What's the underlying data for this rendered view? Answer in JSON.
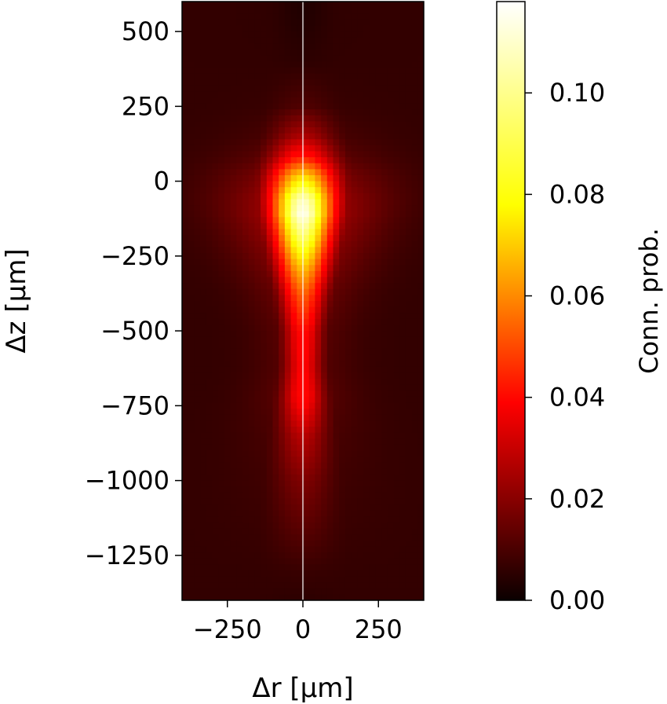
{
  "chart_data": {
    "type": "heatmap",
    "title": "",
    "xlabel": "Δr [μm]",
    "ylabel": "Δz [μm]",
    "xlim": [
      -400,
      400
    ],
    "ylim": [
      -1400,
      600
    ],
    "x_ticks": [
      -250,
      0,
      250
    ],
    "x_tick_labels": [
      "−250",
      "0",
      "250"
    ],
    "y_ticks": [
      500,
      250,
      0,
      -250,
      -500,
      -750,
      -1000,
      -1250
    ],
    "y_tick_labels": [
      "500",
      "250",
      "0",
      "−250",
      "−500",
      "−750",
      "−1000",
      "−1250"
    ],
    "reference_line": {
      "axis": "x",
      "value": 0,
      "color": "#ffffff"
    },
    "grid": false,
    "colorbar": {
      "label": "Conn. prob.",
      "colormap": "hot",
      "min": 0.0,
      "max": 0.118,
      "ticks": [
        0.0,
        0.02,
        0.04,
        0.06,
        0.08,
        0.1
      ],
      "tick_labels": [
        "0.00",
        "0.02",
        "0.04",
        "0.06",
        "0.08",
        "0.10"
      ]
    },
    "profile": [
      {
        "z": 560,
        "peak": 0.004,
        "width": 60
      },
      {
        "z": 400,
        "peak": 0.006,
        "width": 60
      },
      {
        "z": 250,
        "peak": 0.012,
        "width": 70
      },
      {
        "z": 150,
        "peak": 0.028,
        "width": 75
      },
      {
        "z": 80,
        "peak": 0.048,
        "width": 80
      },
      {
        "z": 20,
        "peak": 0.08,
        "width": 80
      },
      {
        "z": -60,
        "peak": 0.11,
        "width": 78
      },
      {
        "z": -110,
        "peak": 0.115,
        "width": 75
      },
      {
        "z": -200,
        "peak": 0.098,
        "width": 68
      },
      {
        "z": -300,
        "peak": 0.075,
        "width": 60
      },
      {
        "z": -380,
        "peak": 0.06,
        "width": 52
      },
      {
        "z": -500,
        "peak": 0.046,
        "width": 45
      },
      {
        "z": -620,
        "peak": 0.042,
        "width": 45
      },
      {
        "z": -720,
        "peak": 0.046,
        "width": 50
      },
      {
        "z": -850,
        "peak": 0.03,
        "width": 60
      },
      {
        "z": -1000,
        "peak": 0.02,
        "width": 70
      },
      {
        "z": -1150,
        "peak": 0.014,
        "width": 75
      },
      {
        "z": -1300,
        "peak": 0.008,
        "width": 80
      },
      {
        "z": -1400,
        "peak": 0.006,
        "width": 80
      }
    ],
    "background_level": 0.007
  }
}
